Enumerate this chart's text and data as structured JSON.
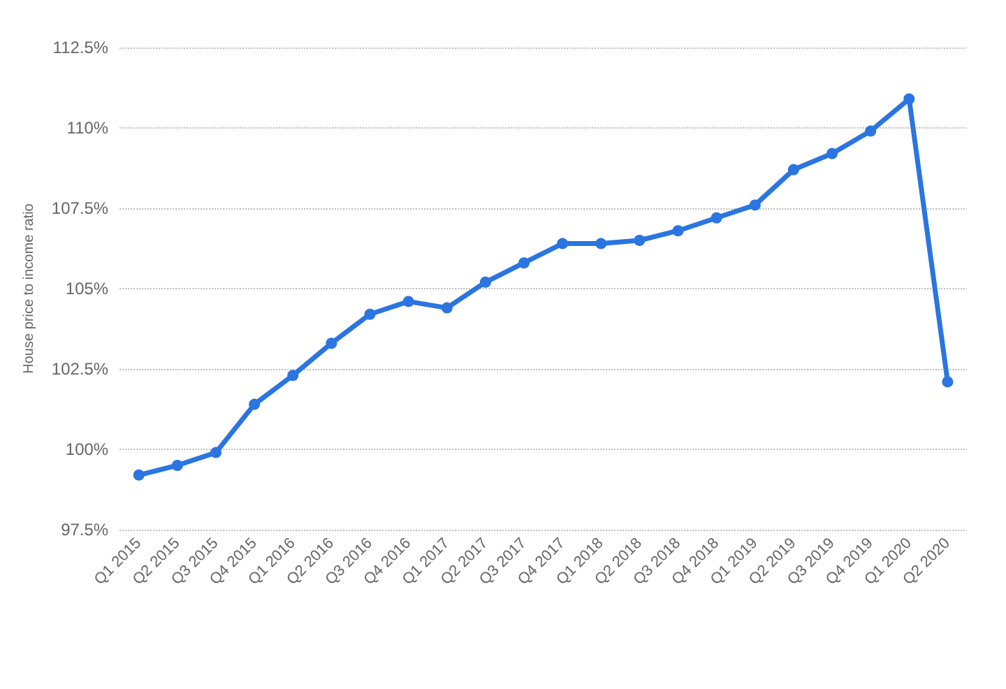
{
  "chart_data": {
    "type": "line",
    "ylabel": "House price to income ratio",
    "categories": [
      "Q1 2015",
      "Q2 2015",
      "Q3 2015",
      "Q4 2015",
      "Q1 2016",
      "Q2 2016",
      "Q3 2016",
      "Q4 2016",
      "Q1 2017",
      "Q2 2017",
      "Q3 2017",
      "Q4 2017",
      "Q1 2018",
      "Q2 2018",
      "Q3 2018",
      "Q4 2018",
      "Q1 2019",
      "Q2 2019",
      "Q3 2019",
      "Q4 2019",
      "Q1 2020",
      "Q2 2020"
    ],
    "series": [
      {
        "color": "#2a75e1",
        "values": [
          99.2,
          99.5,
          99.9,
          101.4,
          102.3,
          103.3,
          104.2,
          104.6,
          104.4,
          105.2,
          105.8,
          106.4,
          106.4,
          106.5,
          106.8,
          107.2,
          107.6,
          108.7,
          109.2,
          109.9,
          110.9,
          102.1
        ]
      }
    ],
    "ylim": [
      97.5,
      112.5
    ],
    "yticks": [
      {
        "value": 97.5,
        "label": "97.5%"
      },
      {
        "value": 100,
        "label": "100%"
      },
      {
        "value": 102.5,
        "label": "102.5%"
      },
      {
        "value": 105,
        "label": "105%"
      },
      {
        "value": 107.5,
        "label": "107.5%"
      },
      {
        "value": 110,
        "label": "110%"
      },
      {
        "value": 112.5,
        "label": "112.5%"
      }
    ],
    "grid": "y",
    "marker": "circle",
    "line_style": "solid"
  }
}
